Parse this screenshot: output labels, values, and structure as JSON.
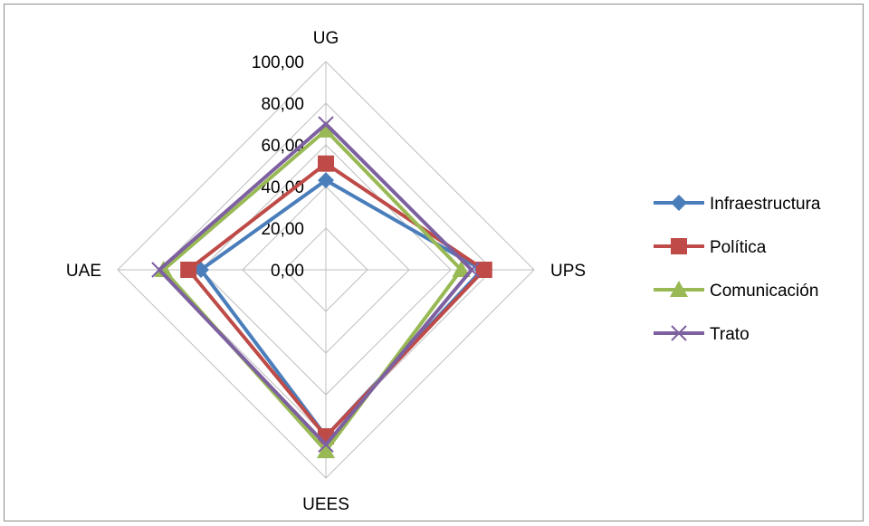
{
  "chart_data": {
    "type": "radar",
    "axes": [
      "UG",
      "UPS",
      "UEES",
      "UAE"
    ],
    "rlim": [
      0,
      100
    ],
    "ticks": [
      "0,00",
      "20,00",
      "40,00",
      "60,00",
      "80,00",
      "100,00"
    ],
    "grid": true,
    "legend_position": "right",
    "series": [
      {
        "name": "Infraestructura",
        "values": [
          43,
          75,
          80,
          60
        ],
        "color": "#4a7ebb",
        "marker": "diamond"
      },
      {
        "name": "Política",
        "values": [
          51,
          76,
          80,
          66
        ],
        "color": "#be4b48",
        "marker": "square"
      },
      {
        "name": "Comunicación",
        "values": [
          67,
          65,
          87,
          78
        ],
        "color": "#98b954",
        "marker": "triangle"
      },
      {
        "name": "Trato",
        "values": [
          70,
          70,
          84,
          80
        ],
        "color": "#7d60a0",
        "marker": "x"
      }
    ]
  }
}
